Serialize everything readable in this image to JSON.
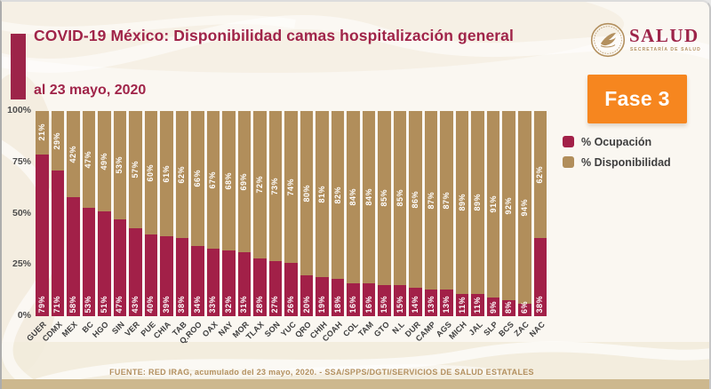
{
  "header": {
    "title": "COVID-19 México: Disponibilidad camas hospitalización general",
    "subtitle": "al 23 mayo, 2020",
    "phase_badge": "Fase 3",
    "logo": {
      "name": "SALUD",
      "sub": "SECRETARÍA DE SALUD"
    }
  },
  "legend": [
    {
      "label": "% Ocupación",
      "color": "#A22048"
    },
    {
      "label": "% Disponibilidad",
      "color": "#B18E5B"
    }
  ],
  "colors": {
    "occupation": "#A22048",
    "availability": "#B18E5B",
    "accent_maroon": "#9D2449",
    "phase_orange": "#F6861F",
    "footer_tan": "#B3905F",
    "bottom_strip": "#CDB88E"
  },
  "chart_data": {
    "type": "bar",
    "stacked": true,
    "title": "COVID-19 México: Disponibilidad camas hospitalización general",
    "subtitle": "al 23 mayo, 2020",
    "categories": [
      "GUER",
      "CDMX",
      "MEX",
      "BC",
      "HGO",
      "SIN",
      "VER",
      "PUE",
      "CHIA",
      "TAB",
      "Q.ROO",
      "OAX",
      "NAY",
      "MOR",
      "TLAX",
      "SON",
      "YUC",
      "QRO",
      "CHIH",
      "COAH",
      "COL",
      "TAM",
      "GTO",
      "N.L",
      "DUR",
      "CAMP",
      "AGS",
      "MICH",
      "JAL",
      "SLP",
      "BCS",
      "ZAC",
      "NAC"
    ],
    "series": [
      {
        "name": "% Ocupación",
        "color": "#A22048",
        "values": [
          79,
          71,
          58,
          53,
          51,
          47,
          43,
          40,
          39,
          38,
          34,
          33,
          32,
          31,
          28,
          27,
          26,
          20,
          19,
          18,
          16,
          16,
          15,
          15,
          14,
          13,
          13,
          11,
          11,
          9,
          8,
          6,
          38
        ]
      },
      {
        "name": "% Disponibilidad",
        "color": "#B18E5B",
        "values": [
          21,
          29,
          42,
          47,
          49,
          53,
          57,
          60,
          61,
          62,
          66,
          67,
          68,
          69,
          72,
          73,
          74,
          80,
          81,
          82,
          84,
          84,
          85,
          85,
          86,
          87,
          87,
          89,
          89,
          91,
          92,
          94,
          62
        ]
      }
    ],
    "y_axis_ticks": [
      "100%",
      "75%",
      "50%",
      "25%",
      "0%"
    ],
    "ylim": [
      0,
      100
    ],
    "grid": false,
    "legend_position": "right"
  },
  "footer": {
    "source": "FUENTE: RED IRAG, acumulado del 23 mayo, 2020. -   SSA/SPPS/DGTI/SERVICIOS DE SALUD ESTATALES"
  }
}
